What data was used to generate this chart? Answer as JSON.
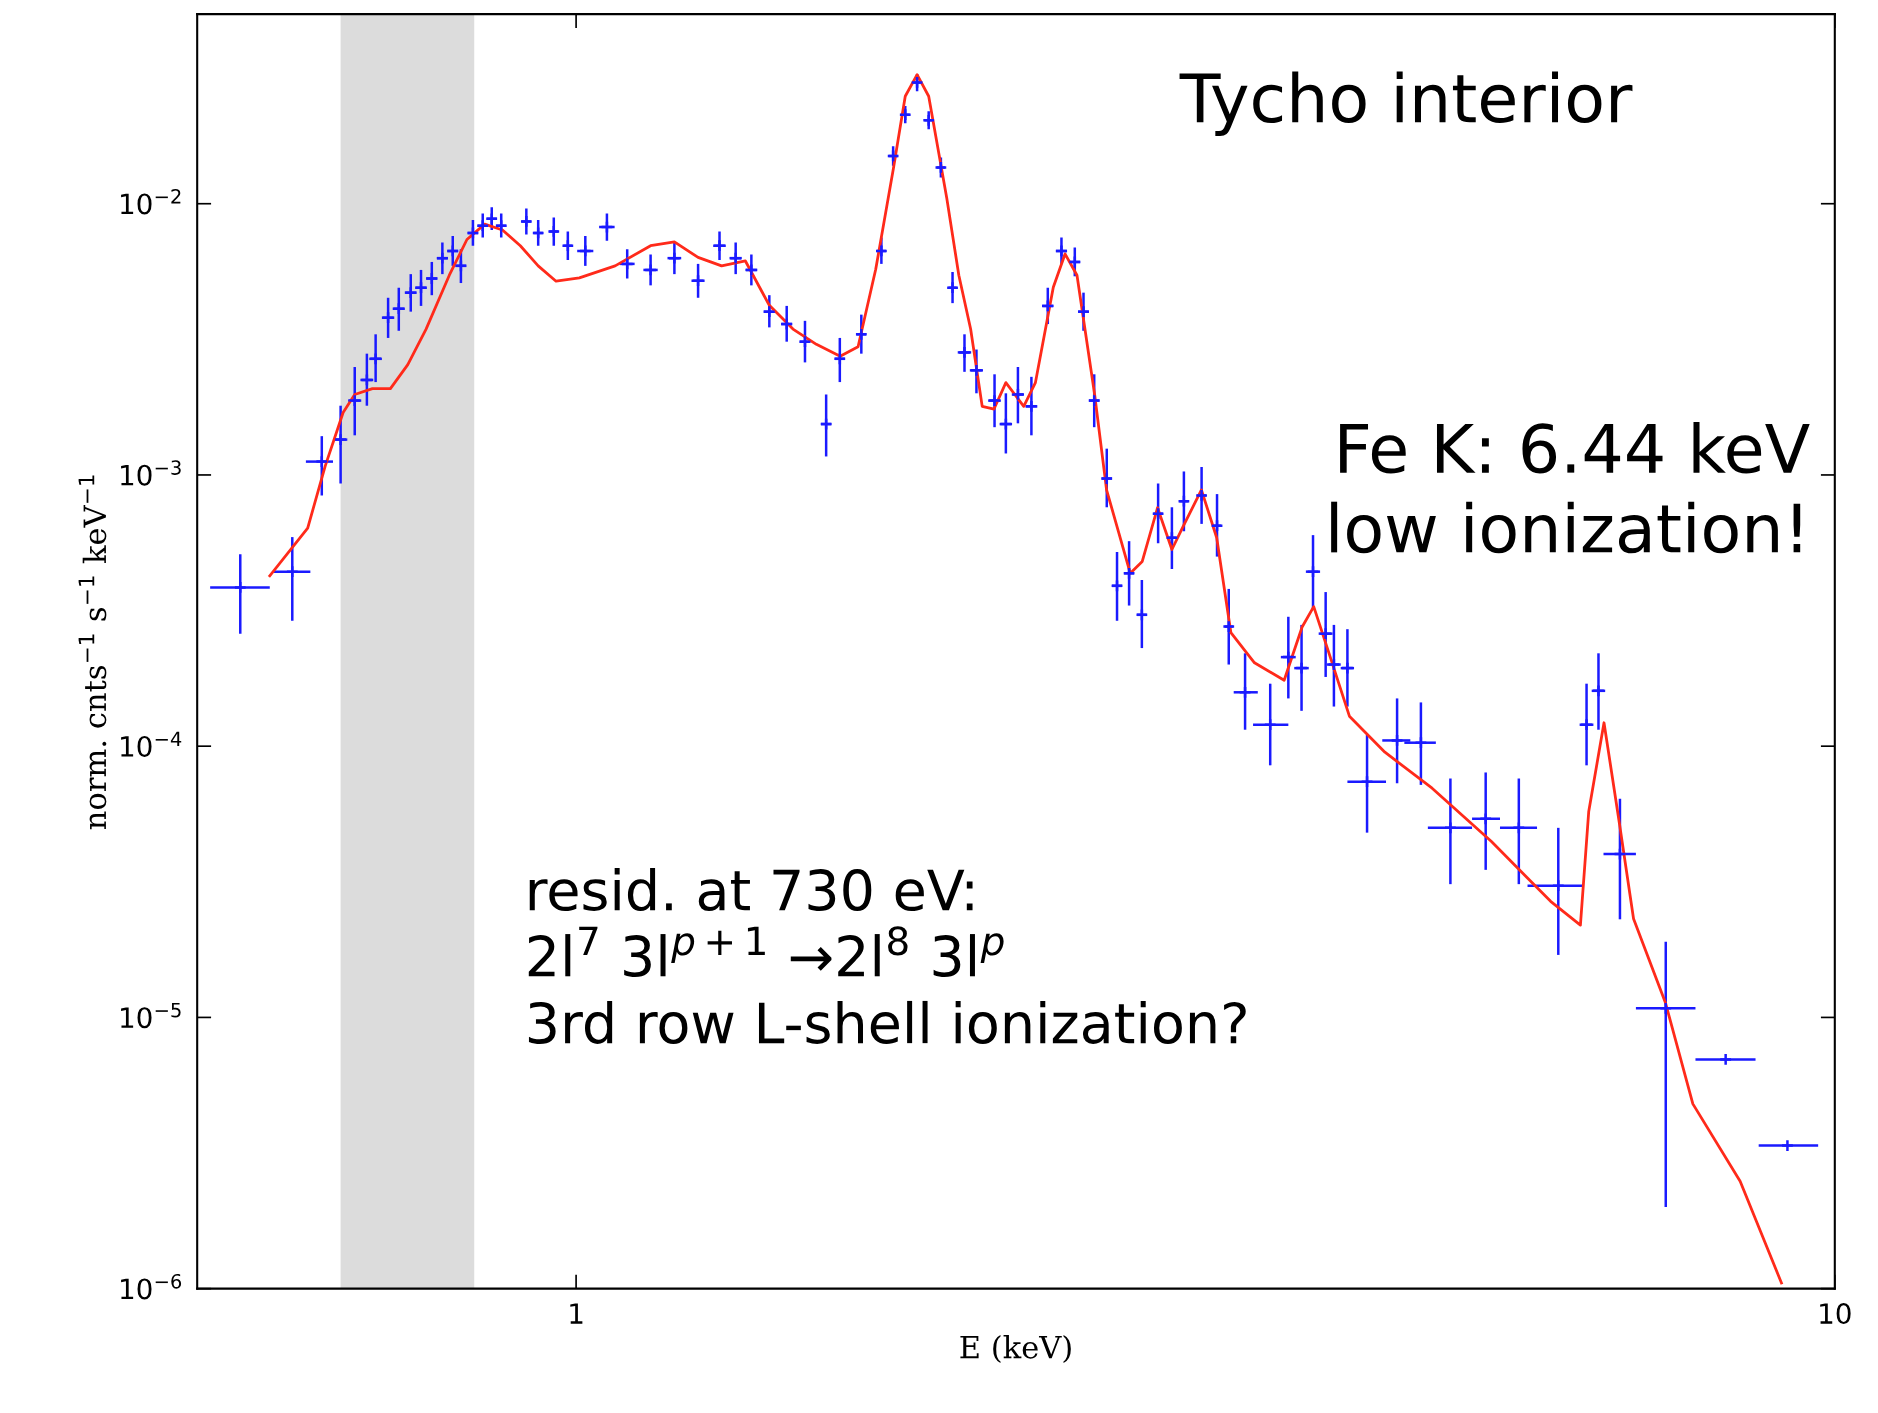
{
  "chart_data": {
    "type": "scatter",
    "xlabel": "E (keV)",
    "ylabel": "norm. cnts$^{−1}$ s$^{−1}$ keV$^{−1}$",
    "log": "xy",
    "xlim": [
      0.5,
      10
    ],
    "ylim": [
      1e-06,
      0.05
    ],
    "xticks": [
      1,
      10
    ],
    "yticks": [
      {
        "value": 1e-06,
        "label": "10$^{−6}$"
      },
      {
        "value": 1e-05,
        "label": "10$^{−5}$"
      },
      {
        "value": 0.0001,
        "label": "10$^{−4}$"
      },
      {
        "value": 0.001,
        "label": "10$^{−3}$"
      },
      {
        "value": 0.01,
        "label": "10$^{−2}$"
      }
    ],
    "grid": false,
    "legend": false,
    "bands": [
      {
        "axis": "x",
        "from": 0.65,
        "to": 0.83,
        "color": "#dcdcdc"
      }
    ],
    "annotations": [
      "Tycho interior",
      "Fe K: 6.44 keV\nlow ionization!",
      "resid. at 730 eV:\n2l$^{7}$ 3l$^{p+1}$ →2l$^{8}$ 3l$^{p}$\n3rd row L-shell ionization?"
    ],
    "series": [
      {
        "type": "scatter",
        "marker": "cross",
        "color": "#1a1aff",
        "x": [
          0.541,
          0.595,
          0.628,
          0.65,
          0.667,
          0.682,
          0.693,
          0.709,
          0.723,
          0.739,
          0.753,
          0.768,
          0.783,
          0.798,
          0.81,
          0.828,
          0.843,
          0.857,
          0.872,
          0.913,
          0.933,
          0.96,
          0.985,
          1.017,
          1.058,
          1.098,
          1.146,
          1.197,
          1.25,
          1.3,
          1.339,
          1.378,
          1.424,
          1.47,
          1.52,
          1.58,
          1.62,
          1.685,
          1.748,
          1.786,
          1.826,
          1.866,
          1.906,
          1.949,
          1.991,
          2.035,
          2.08,
          2.15,
          2.195,
          2.244,
          2.3,
          2.37,
          2.43,
          2.49,
          2.53,
          2.58,
          2.64,
          2.69,
          2.75,
          2.815,
          2.9,
          2.974,
          3.04,
          3.14,
          3.23,
          3.3,
          3.4,
          3.56,
          3.68,
          3.77,
          3.85,
          3.94,
          4.0,
          4.1,
          4.25,
          4.49,
          4.69,
          4.95,
          5.28,
          5.61,
          6.03,
          6.35,
          6.49,
          6.75,
          7.34,
          8.19,
          9.17
        ],
        "values": [
          0.000385,
          0.00044,
          0.00112,
          0.00135,
          0.00188,
          0.00224,
          0.00268,
          0.0038,
          0.0041,
          0.0047,
          0.0049,
          0.0053,
          0.0063,
          0.0067,
          0.0059,
          0.0078,
          0.0083,
          0.0088,
          0.0083,
          0.0086,
          0.0078,
          0.0079,
          0.007,
          0.0067,
          0.0082,
          0.006,
          0.0057,
          0.0063,
          0.0052,
          0.007,
          0.0063,
          0.0057,
          0.004,
          0.0036,
          0.0031,
          0.00154,
          0.00268,
          0.0033,
          0.0067,
          0.015,
          0.0213,
          0.028,
          0.0203,
          0.0136,
          0.0049,
          0.00283,
          0.00243,
          0.00188,
          0.00154,
          0.00198,
          0.00179,
          0.0042,
          0.0067,
          0.0061,
          0.004,
          0.00188,
          0.00097,
          0.00039,
          0.000434,
          0.000305,
          0.00072,
          0.000587,
          0.0008,
          0.00084,
          0.00065,
          0.000276,
          0.000158,
          0.00012,
          0.000213,
          0.000194,
          0.00044,
          0.00026,
          0.0002,
          0.000194,
          7.4e-05,
          0.000105,
          0.000103,
          5e-05,
          5.4e-05,
          5e-05,
          3.06e-05,
          0.00012,
          0.00016,
          4e-05,
          1.08e-05,
          7e-06,
          3.37e-06
        ],
        "errors": [
          [
            0.00026,
            0.00051
          ],
          [
            0.00029,
            0.00059
          ],
          [
            0.00084,
            0.00139
          ],
          [
            0.00093,
            0.0018
          ],
          [
            0.0014,
            0.0025
          ],
          [
            0.0018,
            0.0028
          ],
          [
            0.0022,
            0.0033
          ],
          [
            0.0032,
            0.0045
          ],
          [
            0.0034,
            0.0049
          ],
          [
            0.004,
            0.0055
          ],
          [
            0.0042,
            0.0057
          ],
          [
            0.0046,
            0.0061
          ],
          [
            0.0055,
            0.0072
          ],
          [
            0.0059,
            0.0076
          ],
          [
            0.0051,
            0.0068
          ],
          [
            0.007,
            0.0087
          ],
          [
            0.0075,
            0.0092
          ],
          [
            0.008,
            0.0097
          ],
          [
            0.0075,
            0.0092
          ],
          [
            0.0077,
            0.0096
          ],
          [
            0.007,
            0.0087
          ],
          [
            0.007,
            0.0089
          ],
          [
            0.0062,
            0.0079
          ],
          [
            0.0059,
            0.0076
          ],
          [
            0.0073,
            0.0092
          ],
          [
            0.0053,
            0.0068
          ],
          [
            0.005,
            0.0065
          ],
          [
            0.0055,
            0.0072
          ],
          [
            0.0045,
            0.006
          ],
          [
            0.0062,
            0.0079
          ],
          [
            0.0055,
            0.0072
          ],
          [
            0.005,
            0.0065
          ],
          [
            0.0035,
            0.0046
          ],
          [
            0.0031,
            0.0042
          ],
          [
            0.0026,
            0.0037
          ],
          [
            0.00117,
            0.00198
          ],
          [
            0.0022,
            0.0032
          ],
          [
            0.0028,
            0.0039
          ],
          [
            0.006,
            0.0075
          ],
          [
            0.0138,
            0.0163
          ],
          [
            0.0198,
            0.0229
          ],
          [
            0.026,
            0.0301
          ],
          [
            0.0188,
            0.0219
          ],
          [
            0.0125,
            0.0148
          ],
          [
            0.0043,
            0.0056
          ],
          [
            0.0024,
            0.0033
          ],
          [
            0.002,
            0.0029
          ],
          [
            0.0015,
            0.00235
          ],
          [
            0.0012,
            0.002
          ],
          [
            0.00155,
            0.0025
          ],
          [
            0.0014,
            0.0023
          ],
          [
            0.0036,
            0.0049
          ],
          [
            0.006,
            0.0075
          ],
          [
            0.0054,
            0.0069
          ],
          [
            0.0034,
            0.0047
          ],
          [
            0.0015,
            0.00235
          ],
          [
            0.00076,
            0.00125
          ],
          [
            0.00029,
            0.00052
          ],
          [
            0.00033,
            0.00057
          ],
          [
            0.00023,
            0.00041
          ],
          [
            0.00056,
            0.00093
          ],
          [
            0.00045,
            0.00076
          ],
          [
            0.00062,
            0.00103
          ],
          [
            0.00066,
            0.00107
          ],
          [
            0.0005,
            0.00085
          ],
          [
            0.0002,
            0.00038
          ],
          [
            0.000115,
            0.00022
          ],
          [
            8.5e-05,
            0.00017
          ],
          [
            0.00015,
            0.0003
          ],
          [
            0.000135,
            0.00028
          ],
          [
            0.00032,
            0.0006
          ],
          [
            0.00018,
            0.00037
          ],
          [
            0.00014,
            0.00028
          ],
          [
            0.00014,
            0.00027
          ],
          [
            4.8e-05,
            0.00011
          ],
          [
            7.3e-05,
            0.00015
          ],
          [
            7.2e-05,
            0.000145
          ],
          [
            3.1e-05,
            7.6e-05
          ],
          [
            3.5e-05,
            8e-05
          ],
          [
            3.1e-05,
            7.6e-05
          ],
          [
            1.7e-05,
            5e-05
          ],
          [
            8.5e-05,
            0.00017
          ],
          [
            0.000115,
            0.00022
          ],
          [
            2.3e-05,
            6.4e-05
          ],
          [
            2e-06,
            1.9e-05
          ],
          null,
          null
        ],
        "xerrors": [
          [
            0.512,
            0.571
          ],
          [
            0.575,
            0.615
          ],
          [
            0.61,
            0.641
          ],
          0.008,
          0.008,
          0.008,
          0.008,
          0.008,
          0.008,
          0.008,
          0.008,
          0.008,
          0.008,
          0.008,
          0.008,
          0.008,
          0.008,
          0.008,
          0.008,
          0.008,
          0.008,
          0.008,
          0.008,
          0.015,
          0.015,
          0.015,
          0.015,
          0.015,
          0.015,
          0.015,
          0.015,
          0.015,
          0.015,
          0.015,
          0.015,
          0.015,
          0.015,
          0.015,
          0.015,
          0.015,
          0.015,
          0.015,
          0.015,
          0.015,
          0.015,
          0.025,
          0.025,
          0.025,
          0.025,
          0.025,
          0.025,
          0.025,
          0.025,
          0.025,
          0.025,
          0.025,
          0.025,
          0.025,
          0.025,
          0.025,
          0.025,
          0.025,
          0.025,
          0.025,
          0.025,
          0.025,
          [
            3.33,
            3.48
          ],
          [
            3.45,
            3.68
          ],
          0.05,
          0.05,
          0.05,
          0.05,
          0.05,
          0.05,
          [
            4.1,
            4.4
          ],
          [
            4.37,
            4.6
          ],
          [
            4.55,
            4.82
          ],
          [
            4.75,
            5.15
          ],
          [
            5.15,
            5.42
          ],
          [
            5.42,
            5.8
          ],
          [
            5.7,
            6.3
          ],
          0.08,
          0.08,
          [
            6.55,
            6.95
          ],
          [
            6.95,
            7.75
          ],
          [
            7.75,
            8.65
          ],
          [
            8.7,
            9.7
          ]
        ]
      },
      {
        "type": "line",
        "color": "#ff2a1a",
        "marker": "none",
        "line_style": "solid",
        "x": [
          0.571,
          0.612,
          0.632,
          0.653,
          0.667,
          0.689,
          0.712,
          0.735,
          0.76,
          0.793,
          0.819,
          0.846,
          0.874,
          0.903,
          0.933,
          0.964,
          1.006,
          1.074,
          1.146,
          1.197,
          1.25,
          1.305,
          1.363,
          1.424,
          1.487,
          1.552,
          1.621,
          1.675,
          1.73,
          1.787,
          1.826,
          1.866,
          1.906,
          1.97,
          2.014,
          2.058,
          2.102,
          2.148,
          2.195,
          2.268,
          2.317,
          2.394,
          2.446,
          2.5,
          2.582,
          2.639,
          2.697,
          2.756,
          2.817,
          2.897,
          2.974,
          3.038,
          3.139,
          3.228,
          3.313,
          3.459,
          3.652,
          3.774,
          3.855,
          3.958,
          4.115,
          4.391,
          4.787,
          5.336,
          5.946,
          6.279,
          6.375,
          6.556,
          6.744,
          6.92,
          7.337,
          7.713,
          8.41,
          9.07
        ],
        "values": [
          0.000425,
          0.000637,
          0.00108,
          0.0017,
          0.00198,
          0.00208,
          0.00208,
          0.00255,
          0.00345,
          0.00545,
          0.00738,
          0.00841,
          0.008,
          0.007,
          0.0059,
          0.00518,
          0.00533,
          0.0059,
          0.007,
          0.00723,
          0.00634,
          0.0059,
          0.00615,
          0.00422,
          0.00345,
          0.00303,
          0.00274,
          0.00297,
          0.00573,
          0.0135,
          0.0249,
          0.0299,
          0.0249,
          0.0105,
          0.00545,
          0.00345,
          0.00179,
          0.00175,
          0.00219,
          0.00179,
          0.00219,
          0.00492,
          0.00653,
          0.00545,
          0.00198,
          0.000881,
          0.000618,
          0.000434,
          0.00048,
          0.000757,
          0.000531,
          0.00065,
          0.000881,
          0.000587,
          0.000262,
          0.000203,
          0.000175,
          0.000275,
          0.000327,
          0.000225,
          0.000129,
          9.5e-05,
          7e-05,
          4.45e-05,
          2.68e-05,
          2.19e-05,
          5.73e-05,
          0.000122,
          5.18e-05,
          2.31e-05,
          1.13e-05,
          4.8e-06,
          2.49e-06,
          1.05e-06
        ]
      }
    ]
  }
}
